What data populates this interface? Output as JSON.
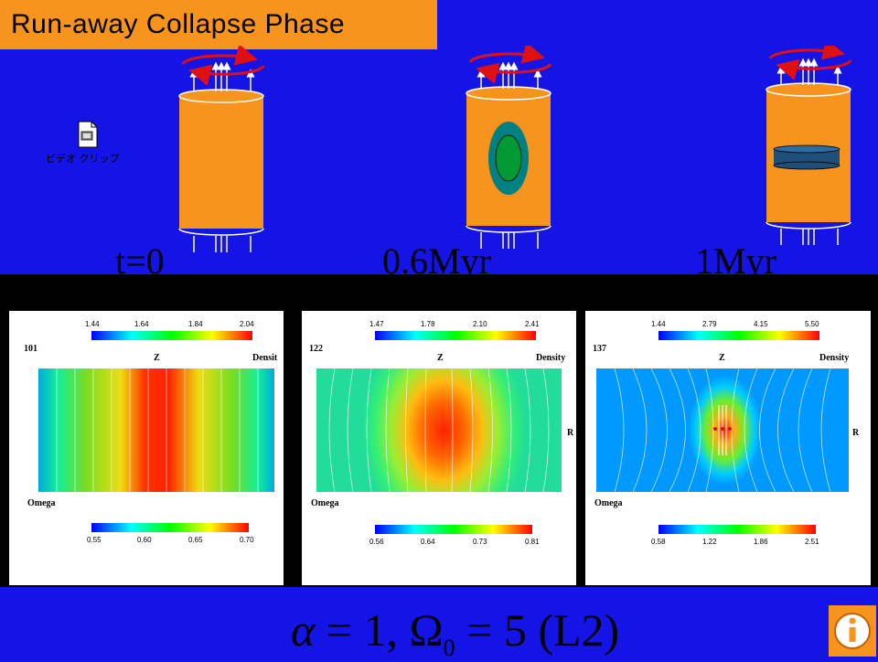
{
  "title": "Run-away Collapse Phase",
  "video_clip_label": "ビデオ クリップ",
  "stages": [
    {
      "time": "t=0"
    },
    {
      "time": "0.6Myr"
    },
    {
      "time": "1Myr"
    }
  ],
  "panels": [
    {
      "step": "101",
      "axis_z": "Z",
      "axis_r": "",
      "density_label": "Densit",
      "omega_label": "Omega",
      "density_ticks": [
        "1.44",
        "1.64",
        "1.84",
        "2.04"
      ],
      "omega_ticks": [
        "0.55",
        "0.60",
        "0.65",
        "0.70"
      ]
    },
    {
      "step": "122",
      "axis_z": "Z",
      "axis_r": "R",
      "density_label": "Density",
      "omega_label": "Omega",
      "density_ticks": [
        "1.47",
        "1.78",
        "2.10",
        "2.41"
      ],
      "omega_ticks": [
        "0.56",
        "0.64",
        "0.73",
        "0.81"
      ]
    },
    {
      "step": "137",
      "axis_z": "Z",
      "axis_r": "R",
      "density_label": "Density",
      "omega_label": "Omega",
      "density_ticks": [
        "1.44",
        "2.79",
        "4.15",
        "5.50"
      ],
      "omega_ticks": [
        "0.58",
        "1.22",
        "1.86",
        "2.51"
      ]
    }
  ],
  "formula": {
    "alpha": "α",
    "eq1": " = 1, ",
    "omega": "Ω",
    "sub": "0",
    "eq2": " = 5 (L2)"
  },
  "colors": {
    "background": "#1414e6",
    "accent": "#f7941d",
    "cylinder": "#f7941d",
    "arrow": "#e01010"
  },
  "icons": {
    "info": "info-icon",
    "video": "video-file-icon"
  }
}
